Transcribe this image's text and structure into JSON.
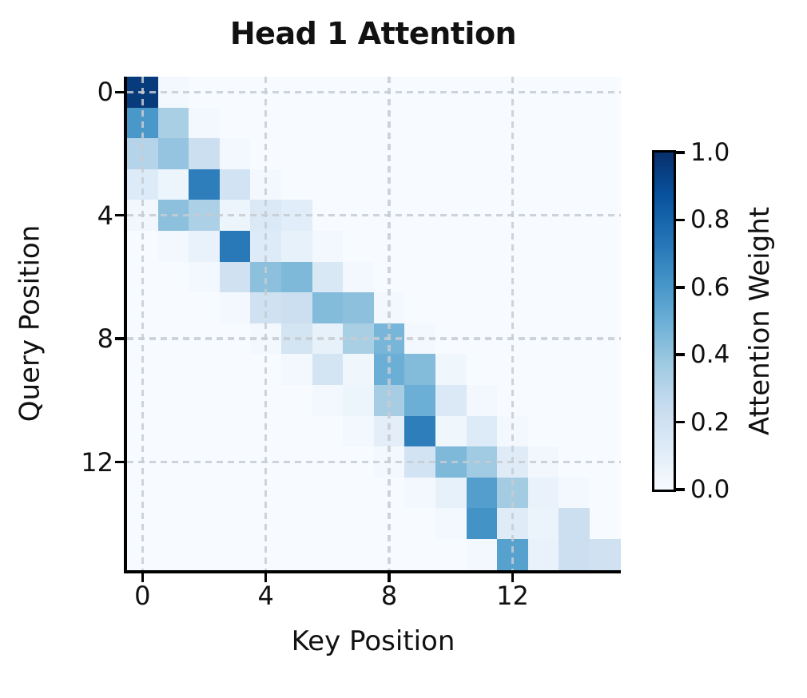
{
  "chart_data": {
    "type": "heatmap",
    "title": "Head 1 Attention",
    "xlabel": "Key Position",
    "ylabel": "Query Position",
    "n_rows": 16,
    "n_cols": 16,
    "x_tick_labels": [
      "0",
      "4",
      "8",
      "12"
    ],
    "x_tick_values": [
      0,
      4,
      8,
      12
    ],
    "y_tick_labels": [
      "0",
      "4",
      "8",
      "12"
    ],
    "y_tick_values": [
      0,
      4,
      8,
      12
    ],
    "grid": true,
    "grid_style": "dashed",
    "matrix": [
      [
        0.96,
        0.02,
        0,
        0,
        0,
        0,
        0,
        0,
        0,
        0,
        0,
        0,
        0,
        0,
        0,
        0
      ],
      [
        0.6,
        0.34,
        0.02,
        0,
        0,
        0,
        0,
        0,
        0,
        0,
        0,
        0,
        0,
        0,
        0,
        0
      ],
      [
        0.3,
        0.4,
        0.22,
        0.02,
        0,
        0,
        0,
        0,
        0,
        0,
        0,
        0,
        0,
        0,
        0,
        0
      ],
      [
        0.13,
        0.05,
        0.7,
        0.19,
        0.02,
        0,
        0,
        0,
        0,
        0,
        0,
        0,
        0,
        0,
        0,
        0
      ],
      [
        0.03,
        0.42,
        0.33,
        0.05,
        0.14,
        0.11,
        0,
        0,
        0,
        0,
        0,
        0,
        0,
        0,
        0,
        0
      ],
      [
        0,
        0.02,
        0.07,
        0.72,
        0.13,
        0.08,
        0.02,
        0,
        0,
        0,
        0,
        0,
        0,
        0,
        0,
        0
      ],
      [
        0,
        0,
        0.02,
        0.2,
        0.42,
        0.45,
        0.15,
        0.02,
        0,
        0,
        0,
        0,
        0,
        0,
        0,
        0
      ],
      [
        0,
        0,
        0,
        0.02,
        0.2,
        0.22,
        0.44,
        0.42,
        0.02,
        0,
        0,
        0,
        0,
        0,
        0,
        0
      ],
      [
        0,
        0,
        0,
        0,
        0.02,
        0.18,
        0.08,
        0.34,
        0.47,
        0.02,
        0,
        0,
        0,
        0,
        0,
        0
      ],
      [
        0,
        0,
        0,
        0,
        0,
        0.02,
        0.18,
        0.04,
        0.5,
        0.44,
        0.04,
        0,
        0,
        0,
        0,
        0
      ],
      [
        0,
        0,
        0,
        0,
        0,
        0,
        0.02,
        0.05,
        0.35,
        0.5,
        0.14,
        0.02,
        0,
        0,
        0,
        0
      ],
      [
        0,
        0,
        0,
        0,
        0,
        0,
        0,
        0.02,
        0.1,
        0.7,
        0.04,
        0.13,
        0.02,
        0,
        0,
        0
      ],
      [
        0,
        0,
        0,
        0,
        0,
        0,
        0,
        0,
        0.02,
        0.19,
        0.45,
        0.37,
        0.12,
        0.03,
        0,
        0
      ],
      [
        0,
        0,
        0,
        0,
        0,
        0,
        0,
        0,
        0,
        0.02,
        0.08,
        0.57,
        0.36,
        0.07,
        0.02,
        0
      ],
      [
        0,
        0,
        0,
        0,
        0,
        0,
        0,
        0,
        0,
        0,
        0.02,
        0.62,
        0.12,
        0.06,
        0.22,
        0
      ],
      [
        0,
        0,
        0,
        0,
        0,
        0,
        0,
        0,
        0,
        0,
        0,
        0.02,
        0.56,
        0.07,
        0.22,
        0.2
      ]
    ],
    "colorbar": {
      "label": "Attention Weight",
      "tick_labels": [
        "1.0",
        "0.8",
        "0.6",
        "0.4",
        "0.2",
        "0.0"
      ],
      "tick_values": [
        1.0,
        0.8,
        0.6,
        0.4,
        0.2,
        0.0
      ],
      "range": [
        0.0,
        1.0
      ]
    },
    "colormap": {
      "name": "Blues",
      "stops": [
        {
          "pos": 0.0,
          "color": "#f7fbff"
        },
        {
          "pos": 0.125,
          "color": "#deebf7"
        },
        {
          "pos": 0.25,
          "color": "#c6dbef"
        },
        {
          "pos": 0.375,
          "color": "#9ecae1"
        },
        {
          "pos": 0.5,
          "color": "#6baed6"
        },
        {
          "pos": 0.625,
          "color": "#4292c6"
        },
        {
          "pos": 0.75,
          "color": "#2171b5"
        },
        {
          "pos": 0.875,
          "color": "#08519c"
        },
        {
          "pos": 1.0,
          "color": "#08306b"
        }
      ]
    },
    "colors": {
      "gridline": "rgba(198,204,210,0.85)",
      "axis": "#000000",
      "text": "#111111",
      "figure_background": "#ffffff"
    }
  }
}
